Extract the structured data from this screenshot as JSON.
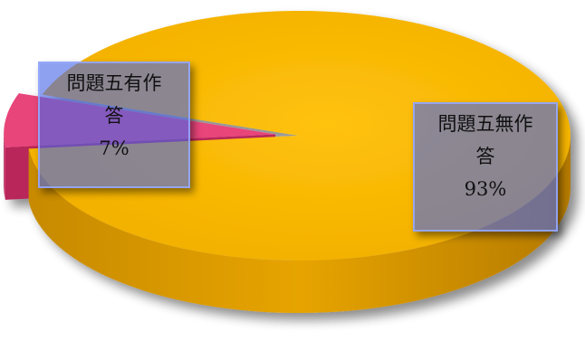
{
  "chart_data": {
    "type": "pie",
    "title": "",
    "slices": [
      {
        "name": "問題五有作答",
        "value": 7,
        "label_lines": [
          "問題五有作",
          "答",
          "7%"
        ],
        "color": "#e8447a"
      },
      {
        "name": "問題五無作答",
        "value": 93,
        "label_lines": [
          "問題五無作",
          "答",
          "93%"
        ],
        "color": "#f4b800"
      }
    ],
    "style": "3d-exploded",
    "legend": "none"
  }
}
